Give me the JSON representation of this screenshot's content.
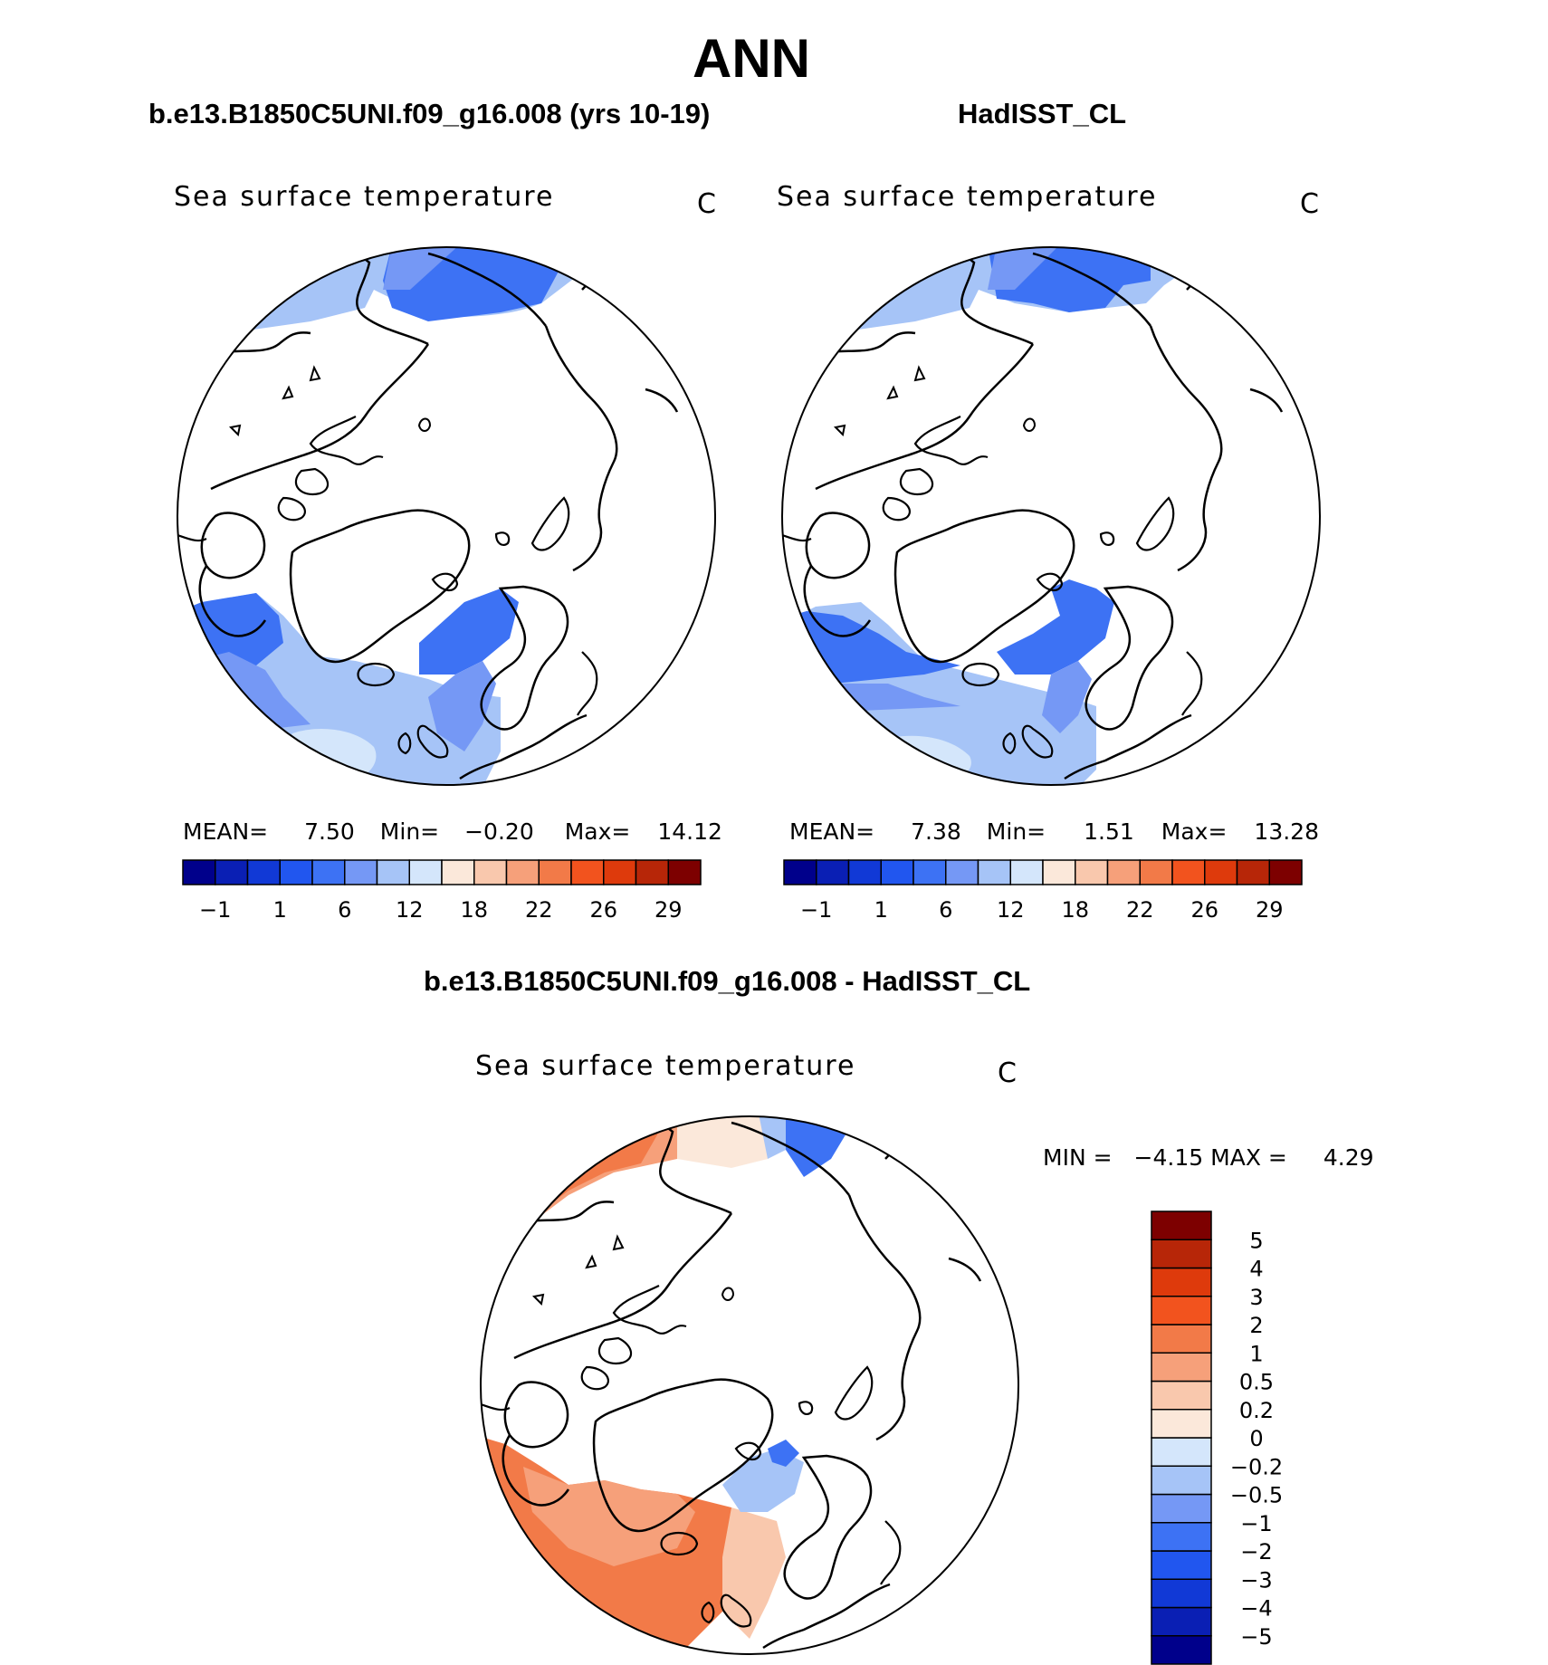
{
  "title": "ANN",
  "panels": [
    {
      "case": "b.e13.B1850C5UNI.f09_g16.008 (yrs 10-19)",
      "field": "Sea surface temperature",
      "units": "C",
      "stats": {
        "mean_label": "MEAN=",
        "mean": "7.50",
        "min_label": "Min=",
        "min": "−0.20",
        "max_label": "Max=",
        "max": "14.12"
      }
    },
    {
      "case": "HadISST_CL",
      "field": "Sea surface temperature",
      "units": "C",
      "stats": {
        "mean_label": "MEAN=",
        "mean": "7.38",
        "min_label": "Min=",
        "min": "1.51",
        "max_label": "Max=",
        "max": "13.28"
      }
    }
  ],
  "diff_panel": {
    "case": "b.e13.B1850C5UNI.f09_g16.008 - HadISST_CL",
    "field": "Sea surface temperature",
    "units": "C",
    "stats": {
      "min_label": "MIN =",
      "min": "−4.15",
      "max_label": "MAX =",
      "max": "4.29"
    }
  },
  "colorbar_abs": {
    "colors": [
      "#00008b",
      "#0a1fb4",
      "#1139d6",
      "#2156ef",
      "#3d72f4",
      "#7598f5",
      "#a6c4f7",
      "#d4e6fb",
      "#fbe8da",
      "#f9c8ad",
      "#f6a07a",
      "#f27a48",
      "#f2531e",
      "#de3a0c",
      "#b72608",
      "#7d0000"
    ],
    "labels": [
      "−1",
      "1",
      "6",
      "12",
      "18",
      "22",
      "26",
      "29"
    ]
  },
  "colorbar_diff": {
    "colors": [
      "#00008b",
      "#0a1fb4",
      "#1139d6",
      "#2156ef",
      "#3d72f4",
      "#7598f5",
      "#a6c4f7",
      "#d4e6fb",
      "#fbe8da",
      "#f9c8ad",
      "#f6a07a",
      "#f27a48",
      "#f2531e",
      "#de3a0c",
      "#b72608",
      "#7d0000"
    ],
    "labels": [
      "−5",
      "−4",
      "−3",
      "−2",
      "−1",
      "−0.5",
      "−0.2",
      "0",
      "0.2",
      "0.5",
      "1",
      "2",
      "3",
      "4",
      "5"
    ]
  }
}
